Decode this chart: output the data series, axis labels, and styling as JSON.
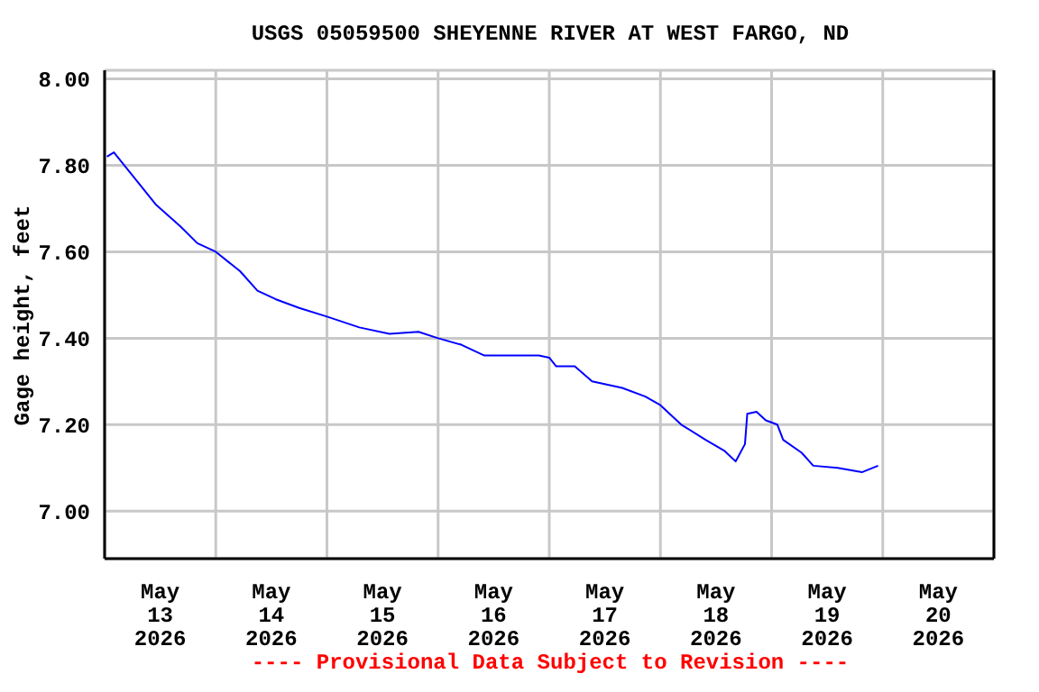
{
  "chart_data": {
    "type": "line",
    "title": "USGS 05059500 SHEYENNE RIVER AT WEST FARGO, ND",
    "ylabel": "Gage height, feet",
    "annotations": [
      "---- Provisional Data Subject to Revision ----"
    ],
    "x": [
      "2026-05-13T00:30",
      "2026-05-13T02:00",
      "2026-05-13T07:15",
      "2026-05-13T11:00",
      "2026-05-13T16:15",
      "2026-05-13T20:00",
      "2026-05-14T00:00",
      "2026-05-14T05:15",
      "2026-05-14T09:00",
      "2026-05-14T13:00",
      "2026-05-14T18:00",
      "2026-05-15T00:00",
      "2026-05-15T07:00",
      "2026-05-15T13:30",
      "2026-05-15T19:45",
      "2026-05-16T00:00",
      "2026-05-16T05:00",
      "2026-05-16T10:00",
      "2026-05-16T16:30",
      "2026-05-16T21:45",
      "2026-05-17T00:00",
      "2026-05-17T01:30",
      "2026-05-17T05:30",
      "2026-05-17T09:15",
      "2026-05-17T15:45",
      "2026-05-17T20:45",
      "2026-05-18T00:00",
      "2026-05-18T04:30",
      "2026-05-18T09:45",
      "2026-05-18T13:45",
      "2026-05-18T16:15",
      "2026-05-18T18:15",
      "2026-05-18T18:45",
      "2026-05-18T20:45",
      "2026-05-18T22:45",
      "2026-05-19T01:15",
      "2026-05-19T02:30",
      "2026-05-19T06:30",
      "2026-05-19T09:00",
      "2026-05-19T14:15",
      "2026-05-19T19:30",
      "2026-05-19T23:00"
    ],
    "series": [
      {
        "color": "#0000ff",
        "values": [
          7.82,
          7.83,
          7.76,
          7.71,
          7.66,
          7.62,
          7.6,
          7.555,
          7.51,
          7.49,
          7.47,
          7.45,
          7.425,
          7.41,
          7.415,
          7.4,
          7.385,
          7.36,
          7.36,
          7.36,
          7.355,
          7.335,
          7.335,
          7.3,
          7.285,
          7.265,
          7.245,
          7.2,
          7.165,
          7.14,
          7.115,
          7.155,
          7.225,
          7.23,
          7.21,
          7.2,
          7.165,
          7.135,
          7.105,
          7.1,
          7.09,
          7.105
        ]
      }
    ],
    "xlim": [
      "2026-05-13T00:00",
      "2026-05-21T00:00"
    ],
    "xticks": [
      {
        "value": "2026-05-13T00:00",
        "label": null
      },
      {
        "value": "2026-05-13T12:00",
        "label": "May\n13\n2026"
      },
      {
        "value": "2026-05-14T00:00",
        "label": null
      },
      {
        "value": "2026-05-14T12:00",
        "label": "May\n14\n2026"
      },
      {
        "value": "2026-05-15T00:00",
        "label": null
      },
      {
        "value": "2026-05-15T12:00",
        "label": "May\n15\n2026"
      },
      {
        "value": "2026-05-16T00:00",
        "label": null
      },
      {
        "value": "2026-05-16T12:00",
        "label": "May\n16\n2026"
      },
      {
        "value": "2026-05-17T00:00",
        "label": null
      },
      {
        "value": "2026-05-17T12:00",
        "label": "May\n17\n2026"
      },
      {
        "value": "2026-05-18T00:00",
        "label": null
      },
      {
        "value": "2026-05-18T12:00",
        "label": "May\n18\n2026"
      },
      {
        "value": "2026-05-19T00:00",
        "label": null
      },
      {
        "value": "2026-05-19T12:00",
        "label": "May\n19\n2026"
      },
      {
        "value": "2026-05-20T00:00",
        "label": null
      },
      {
        "value": "2026-05-20T12:00",
        "label": "May\n20\n2026"
      },
      {
        "value": "2026-05-21T00:00",
        "label": null
      }
    ],
    "ylim": [
      6.89,
      8.02
    ],
    "yticks": [
      {
        "value": 7,
        "label": "7.00"
      },
      {
        "value": 7.2,
        "label": "7.20"
      },
      {
        "value": 7.4,
        "label": "7.40"
      },
      {
        "value": 7.6,
        "label": "7.60"
      },
      {
        "value": 7.8,
        "label": "7.80"
      },
      {
        "value": 8,
        "label": "8.00"
      }
    ],
    "grid": true,
    "legend": false,
    "marker": "none",
    "line_style": "solid"
  }
}
